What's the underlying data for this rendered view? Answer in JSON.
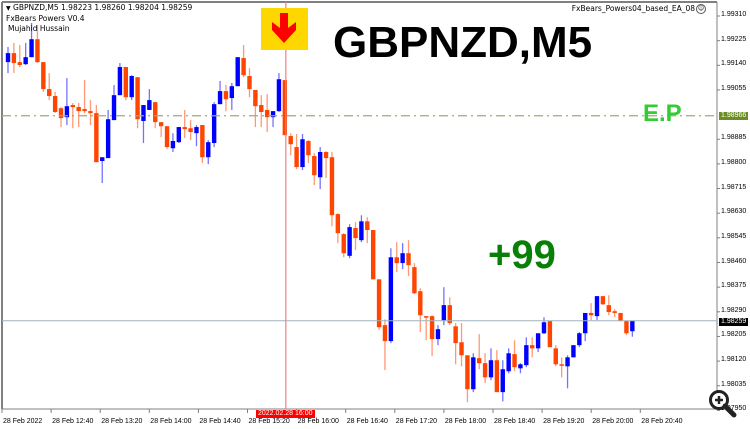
{
  "header": {
    "symbol_line": "GBPNZD,M5  1.98223 1.98260 1.98204 1.98259",
    "indicator": "FxBears Powers V0.4",
    "author": "Mujahid Hussain",
    "ea_name": "FxBears_Powers04_based_EA_08",
    "ea_icon": "smiley-icon"
  },
  "overlay": {
    "symbol_big": "GBPNZD,M5",
    "entry_label": "E.P",
    "profit_label": "+99",
    "signal_icon": "down-arrow-icon"
  },
  "colors": {
    "bull": "#0000ff",
    "bear": "#ff4500",
    "entry_line": "#9aae72",
    "entry_tag": "#6b8e23",
    "current_line": "#9fb2c2",
    "signal_line": "#f08080",
    "signal_box": "#ffd700",
    "arrow": "#ff0000",
    "entry_text": "#33cc33",
    "profit_text": "#088008"
  },
  "price_axis": {
    "ticks": [
      "1.99310",
      "1.99225",
      "1.99140",
      "1.99055",
      "1.98885",
      "1.98800",
      "1.98715",
      "1.98630",
      "1.98545",
      "1.98460",
      "1.98375",
      "1.98290",
      "1.98205",
      "1.98120",
      "1.98035",
      "1.97950"
    ],
    "entry_price": "1.98966",
    "current_price": "1.98259"
  },
  "time_axis": {
    "ticks": [
      "28 Feb 2022",
      "28 Feb 12:40",
      "28 Feb 13:20",
      "28 Feb 14:00",
      "28 Feb 14:40",
      "28 Feb 15:20",
      "28 Feb 16:00",
      "28 Feb 16:40",
      "28 Feb 17:20",
      "28 Feb 18:00",
      "28 Feb 18:40",
      "28 Feb 19:20",
      "28 Feb 20:00",
      "28 Feb 20:40"
    ],
    "crosshair_time": "2022.02.28 16:00"
  },
  "chart_data": {
    "type": "candlestick",
    "symbol": "GBPNZD",
    "timeframe": "M5",
    "ylim": [
      1.9795,
      1.9931
    ],
    "signal_candle_index": 47,
    "ohlc": [
      [
        1.99151,
        1.99203,
        1.99113,
        1.99182
      ],
      [
        1.99182,
        1.99217,
        1.99113,
        1.99148
      ],
      [
        1.99151,
        1.9921,
        1.99134,
        1.99141
      ],
      [
        1.99144,
        1.99217,
        1.99141,
        1.99168
      ],
      [
        1.99168,
        1.99286,
        1.99168,
        1.9923
      ],
      [
        1.9923,
        1.99279,
        1.99148,
        1.99151
      ],
      [
        1.99151,
        1.99151,
        1.99048,
        1.99058
      ],
      [
        1.99058,
        1.99113,
        1.9902,
        1.99034
      ],
      [
        1.99034,
        1.99048,
        1.98975,
        1.98979
      ],
      [
        1.98992,
        1.98996,
        1.98927,
        1.98958
      ],
      [
        1.98961,
        1.99096,
        1.98934,
        1.98999
      ],
      [
        1.99003,
        1.9901,
        1.98923,
        1.98996
      ],
      [
        1.98996,
        1.9901,
        1.98927,
        1.98982
      ],
      [
        1.98989,
        1.99089,
        1.98975,
        1.98982
      ],
      [
        1.98982,
        1.9902,
        1.98934,
        1.98975
      ],
      [
        1.98975,
        1.99003,
        1.98806,
        1.98806
      ],
      [
        1.9881,
        1.98823,
        1.98734,
        1.98823
      ],
      [
        1.9882,
        1.98986,
        1.9882,
        1.98954
      ],
      [
        1.98951,
        1.99072,
        1.98951,
        1.99037
      ],
      [
        1.99037,
        1.99148,
        1.99037,
        1.99134
      ],
      [
        1.99134,
        1.99134,
        1.9902,
        1.9903
      ],
      [
        1.9903,
        1.99106,
        1.9902,
        1.99103
      ],
      [
        1.99099,
        1.99099,
        1.98923,
        1.98954
      ],
      [
        1.98948,
        1.99003,
        1.98872,
        1.99003
      ],
      [
        1.98986,
        1.99058,
        1.98986,
        1.9902
      ],
      [
        1.99013,
        1.99013,
        1.98923,
        1.98944
      ],
      [
        1.98944,
        1.98944,
        1.98892,
        1.9893
      ],
      [
        1.9893,
        1.9893,
        1.98851,
        1.98858
      ],
      [
        1.98854,
        1.98906,
        1.98841,
        1.98879
      ],
      [
        1.98875,
        1.98927,
        1.98872,
        1.98927
      ],
      [
        1.98927,
        1.98986,
        1.98889,
        1.9892
      ],
      [
        1.98923,
        1.98951,
        1.98882,
        1.9891
      ],
      [
        1.98906,
        1.98934,
        1.98861,
        1.98927
      ],
      [
        1.98934,
        1.98934,
        1.98803,
        1.98823
      ],
      [
        1.98823,
        1.98882,
        1.98799,
        1.98875
      ],
      [
        1.98872,
        1.99013,
        1.98858,
        1.99006
      ],
      [
        1.99006,
        1.99086,
        1.99006,
        1.99051
      ],
      [
        1.99051,
        1.99072,
        1.98982,
        1.99023
      ],
      [
        1.99027,
        1.99079,
        1.98986,
        1.99068
      ],
      [
        1.99068,
        1.99168,
        1.99068,
        1.99168
      ],
      [
        1.99165,
        1.9921,
        1.99099,
        1.99106
      ],
      [
        1.99103,
        1.9913,
        1.9903,
        1.99058
      ],
      [
        1.99055,
        1.99055,
        1.98927,
        1.98999
      ],
      [
        1.99003,
        1.99037,
        1.98927,
        1.98979
      ],
      [
        1.98986,
        1.99041,
        1.9891,
        1.98961
      ],
      [
        1.98961,
        1.98982,
        1.98927,
        1.98982
      ],
      [
        1.98982,
        1.99113,
        1.98979,
        1.99092
      ],
      [
        1.99089,
        1.99089,
        1.98899,
        1.98899
      ],
      [
        1.98896,
        1.98906,
        1.9883,
        1.98868
      ],
      [
        1.98858,
        1.98903,
        1.98782,
        1.98789
      ],
      [
        1.98789,
        1.98903,
        1.98779,
        1.98885
      ],
      [
        1.98879,
        1.98882,
        1.98803,
        1.9883
      ],
      [
        1.98827,
        1.98837,
        1.98727,
        1.98761
      ],
      [
        1.98754,
        1.98858,
        1.98713,
        1.98841
      ],
      [
        1.98841,
        1.98844,
        1.98751,
        1.9882
      ],
      [
        1.98823,
        1.98841,
        1.98585,
        1.98623
      ],
      [
        1.98627,
        1.9863,
        1.98527,
        1.98561
      ],
      [
        1.98558,
        1.98561,
        1.98478,
        1.98492
      ],
      [
        1.98483,
        1.98592,
        1.98475,
        1.98582
      ],
      [
        1.98579,
        1.98599,
        1.98503,
        1.98544
      ],
      [
        1.98537,
        1.98623,
        1.9853,
        1.98602
      ],
      [
        1.98602,
        1.98616,
        1.98527,
        1.98572
      ],
      [
        1.98572,
        1.98572,
        1.98402,
        1.98402
      ],
      [
        1.98402,
        1.98402,
        1.98227,
        1.98237
      ],
      [
        1.98244,
        1.98264,
        1.98089,
        1.98189
      ],
      [
        1.98189,
        1.98509,
        1.98182,
        1.98478
      ],
      [
        1.98478,
        1.9853,
        1.98427,
        1.98458
      ],
      [
        1.98458,
        1.98527,
        1.98437,
        1.98492
      ],
      [
        1.98492,
        1.98537,
        1.98413,
        1.98451
      ],
      [
        1.98444,
        1.98458,
        1.98351,
        1.98354
      ],
      [
        1.98361,
        1.98371,
        1.9822,
        1.98278
      ],
      [
        1.98275,
        1.98275,
        1.98192,
        1.98271
      ],
      [
        1.98275,
        1.98278,
        1.98137,
        1.98196
      ],
      [
        1.98196,
        1.98244,
        1.98175,
        1.9823
      ],
      [
        1.98261,
        1.98375,
        1.98244,
        1.98313
      ],
      [
        1.98313,
        1.9834,
        1.98244,
        1.98251
      ],
      [
        1.9824,
        1.98251,
        1.98109,
        1.98182
      ],
      [
        1.98185,
        1.98251,
        1.98102,
        1.9814
      ],
      [
        1.9814,
        1.9814,
        1.97978,
        1.98023
      ],
      [
        1.98023,
        1.98147,
        1.98013,
        1.98133
      ],
      [
        1.9813,
        1.98213,
        1.98092,
        1.98113
      ],
      [
        1.98113,
        1.98147,
        1.98044,
        1.98064
      ],
      [
        1.98064,
        1.98164,
        1.98054,
        1.98123
      ],
      [
        1.98123,
        1.98158,
        1.98013,
        1.98013
      ],
      [
        1.98013,
        1.98123,
        1.97981,
        1.98092
      ],
      [
        1.98085,
        1.98164,
        1.98078,
        1.98147
      ],
      [
        1.98144,
        1.98192,
        1.98085,
        1.98099
      ],
      [
        1.98095,
        1.98113,
        1.98078,
        1.98109
      ],
      [
        1.98106,
        1.98202,
        1.98099,
        1.98175
      ],
      [
        1.98175,
        1.98202,
        1.98133,
        1.98164
      ],
      [
        1.98164,
        1.98216,
        1.98151,
        1.98216
      ],
      [
        1.98216,
        1.98271,
        1.98213,
        1.98254
      ],
      [
        1.98258,
        1.98258,
        1.98168,
        1.98168
      ],
      [
        1.98164,
        1.98175,
        1.98102,
        1.98109
      ],
      [
        1.98109,
        1.98133,
        1.98064,
        1.98106
      ],
      [
        1.98102,
        1.9814,
        1.98026,
        1.98133
      ],
      [
        1.98133,
        1.98175,
        1.98133,
        1.98175
      ],
      [
        1.98175,
        1.9822,
        1.98168,
        1.98216
      ],
      [
        1.98216,
        1.98286,
        1.98189,
        1.98286
      ],
      [
        1.98286,
        1.9832,
        1.98261,
        1.98278
      ],
      [
        1.98275,
        1.98344,
        1.98261,
        1.98344
      ],
      [
        1.98344,
        1.98344,
        1.98313,
        1.98316
      ],
      [
        1.98313,
        1.98347,
        1.98278,
        1.98289
      ],
      [
        1.98292,
        1.98299,
        1.98271,
        1.98286
      ],
      [
        1.98286,
        1.98286,
        1.98258,
        1.98258
      ],
      [
        1.98258,
        1.98258,
        1.98209,
        1.98216
      ],
      [
        1.98223,
        1.9826,
        1.98204,
        1.98259
      ]
    ]
  }
}
